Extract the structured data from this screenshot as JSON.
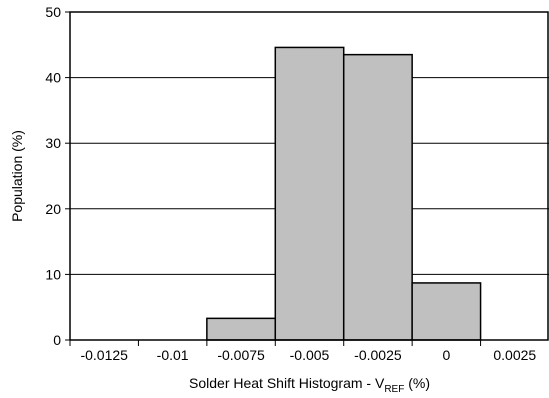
{
  "chart_data": {
    "type": "bar",
    "title": "",
    "xlabel": "Solder Heat Shift Histogram - V",
    "xlabel_sub": "REF",
    "xlabel_suffix": " (%)",
    "ylabel": "Population (%)",
    "ylim": [
      0,
      50
    ],
    "yticks": [
      "0",
      "10",
      "20",
      "30",
      "40",
      "50"
    ],
    "xticks": [
      "-0.0125",
      "-0.01",
      "-0.0075",
      "-0.005",
      "-0.0025",
      "0",
      "0.0025"
    ],
    "bins": [
      {
        "from": -0.0125,
        "to": -0.01,
        "value": 0
      },
      {
        "from": -0.01,
        "to": -0.0075,
        "value": 0
      },
      {
        "from": -0.0075,
        "to": -0.005,
        "value": 3.3
      },
      {
        "from": -0.005,
        "to": -0.0025,
        "value": 44.6
      },
      {
        "from": -0.0025,
        "to": 0,
        "value": 43.5
      },
      {
        "from": 0,
        "to": 0.0025,
        "value": 8.7
      },
      {
        "from": 0.0025,
        "to": 0.005,
        "value": 0
      }
    ],
    "grid": "horizontal",
    "bar_color": "#c0c0c0"
  }
}
